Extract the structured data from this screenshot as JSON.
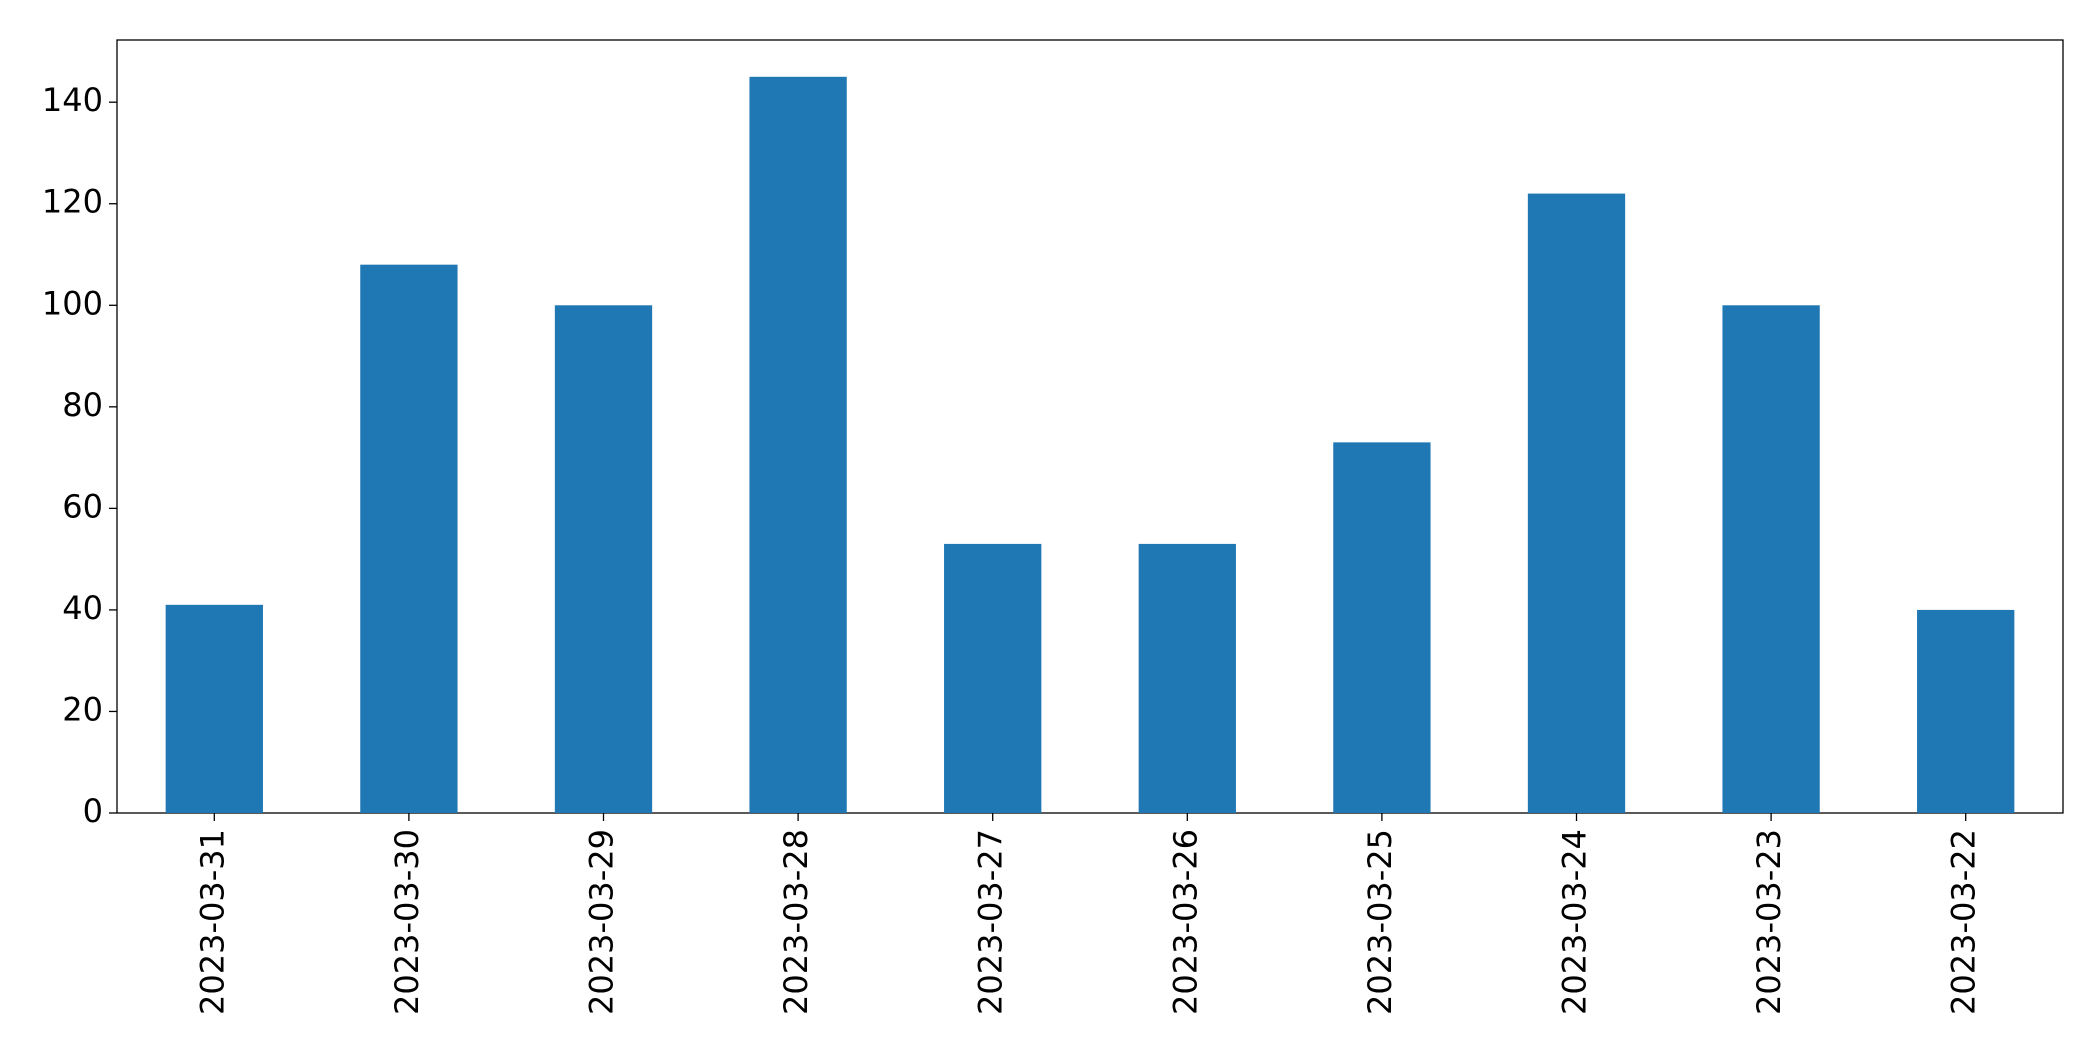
{
  "chart_data": {
    "type": "bar",
    "categories": [
      "2023-03-31",
      "2023-03-30",
      "2023-03-29",
      "2023-03-28",
      "2023-03-27",
      "2023-03-26",
      "2023-03-25",
      "2023-03-24",
      "2023-03-23",
      "2023-03-22"
    ],
    "values": [
      41,
      108,
      100,
      145,
      53,
      53,
      73,
      122,
      100,
      40
    ],
    "color": "#1f77b4",
    "ylim": [
      0,
      152.25
    ],
    "yticks": [
      0,
      20,
      40,
      60,
      80,
      100,
      120,
      140
    ],
    "grid": false
  }
}
